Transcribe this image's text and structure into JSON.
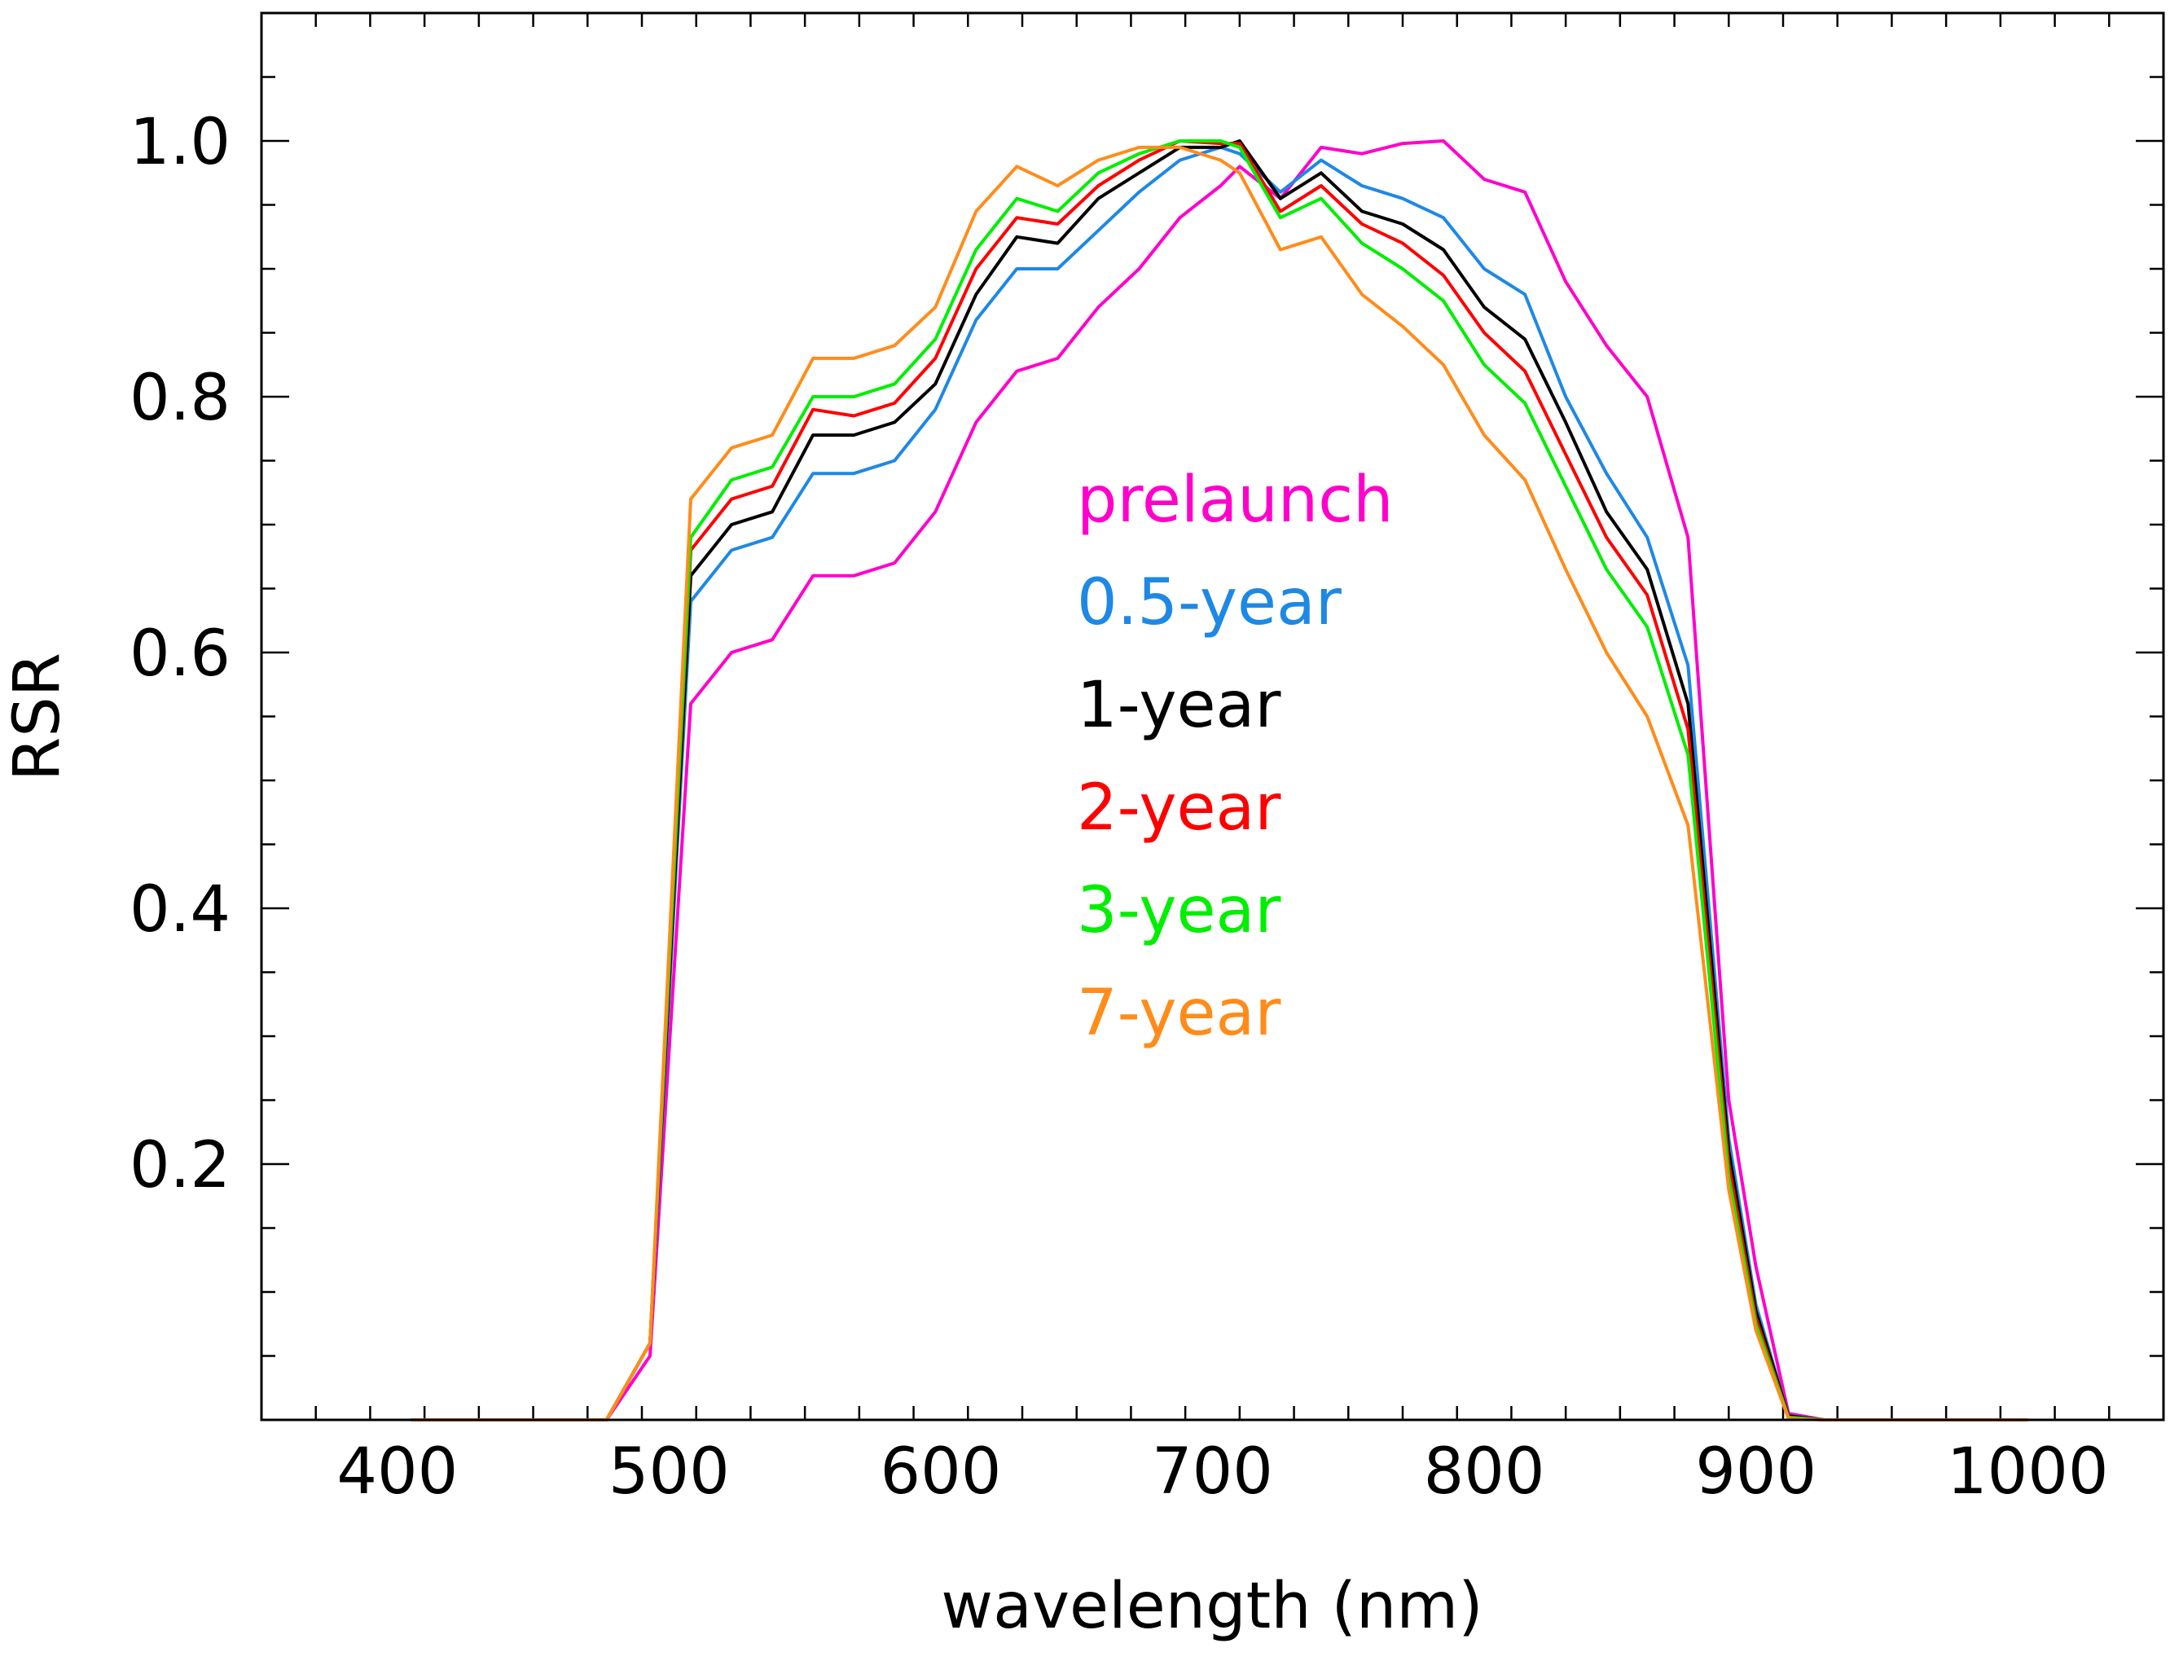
{
  "chart_data": {
    "type": "line",
    "title": "",
    "xlabel": "wavelength (nm)",
    "ylabel": "RSR",
    "xlim": [
      350,
      1050
    ],
    "ylim": [
      0,
      1.1
    ],
    "x_ticks": [
      400,
      500,
      600,
      700,
      800,
      900,
      1000
    ],
    "x_tick_labels": [
      "400",
      "500",
      "600",
      "700",
      "800",
      "900",
      "1000"
    ],
    "y_ticks": [
      0.2,
      0.4,
      0.6,
      0.8,
      1.0
    ],
    "y_tick_labels": [
      "0.2",
      "0.4",
      "0.6",
      "0.8",
      "1.0"
    ],
    "legend_placement": "center",
    "grid": false,
    "x": [
      405,
      420,
      435,
      450,
      465,
      477,
      493,
      508,
      523,
      538,
      553,
      568,
      583,
      598,
      613,
      628,
      643,
      658,
      673,
      688,
      703,
      710,
      725,
      740,
      755,
      770,
      785,
      800,
      815,
      830,
      845,
      860,
      875,
      890,
      900,
      912,
      925,
      940,
      955,
      970,
      985,
      1000
    ],
    "series": [
      {
        "name": "prelaunch",
        "color": "#ff00cc",
        "values": [
          0,
          0,
          0,
          0,
          0,
          0,
          0.05,
          0.56,
          0.6,
          0.61,
          0.66,
          0.66,
          0.67,
          0.71,
          0.78,
          0.82,
          0.83,
          0.87,
          0.9,
          0.94,
          0.965,
          0.98,
          0.955,
          0.995,
          0.99,
          0.998,
          1.0,
          0.97,
          0.96,
          0.89,
          0.84,
          0.8,
          0.69,
          0.25,
          0.12,
          0.005,
          0,
          0,
          0,
          0,
          0,
          0
        ]
      },
      {
        "name": "0.5-year",
        "color": "#1e88e5",
        "values": [
          0,
          0,
          0,
          0,
          0,
          0,
          0.06,
          0.64,
          0.68,
          0.69,
          0.74,
          0.74,
          0.75,
          0.79,
          0.86,
          0.9,
          0.9,
          0.93,
          0.96,
          0.985,
          0.995,
          0.99,
          0.96,
          0.985,
          0.965,
          0.955,
          0.94,
          0.9,
          0.88,
          0.8,
          0.74,
          0.69,
          0.59,
          0.22,
          0.09,
          0.003,
          0,
          0,
          0,
          0,
          0,
          0
        ]
      },
      {
        "name": "1-year",
        "color": "#000000",
        "values": [
          0,
          0,
          0,
          0,
          0,
          0,
          0.06,
          0.66,
          0.7,
          0.71,
          0.77,
          0.77,
          0.78,
          0.81,
          0.88,
          0.925,
          0.92,
          0.955,
          0.975,
          0.995,
          0.995,
          1.0,
          0.955,
          0.975,
          0.945,
          0.935,
          0.915,
          0.87,
          0.845,
          0.78,
          0.71,
          0.665,
          0.56,
          0.21,
          0.085,
          0.003,
          0,
          0,
          0,
          0,
          0,
          0
        ]
      },
      {
        "name": "2-year",
        "color": "#ff0000",
        "values": [
          0,
          0,
          0,
          0,
          0,
          0,
          0.06,
          0.68,
          0.72,
          0.73,
          0.79,
          0.785,
          0.795,
          0.83,
          0.9,
          0.94,
          0.935,
          0.965,
          0.985,
          1.0,
          0.998,
          0.998,
          0.945,
          0.965,
          0.935,
          0.92,
          0.895,
          0.85,
          0.82,
          0.755,
          0.69,
          0.645,
          0.54,
          0.2,
          0.08,
          0.002,
          0,
          0,
          0,
          0,
          0,
          0
        ]
      },
      {
        "name": "3-year",
        "color": "#00ee00",
        "values": [
          0,
          0,
          0,
          0,
          0,
          0,
          0.06,
          0.69,
          0.735,
          0.745,
          0.8,
          0.8,
          0.81,
          0.845,
          0.915,
          0.955,
          0.945,
          0.975,
          0.99,
          1.0,
          1.0,
          0.995,
          0.94,
          0.955,
          0.92,
          0.9,
          0.875,
          0.825,
          0.795,
          0.73,
          0.665,
          0.62,
          0.52,
          0.19,
          0.075,
          0.002,
          0,
          0,
          0,
          0,
          0,
          0
        ]
      },
      {
        "name": "7-year",
        "color": "#ff8c1a",
        "values": [
          0,
          0,
          0,
          0,
          0,
          0,
          0.06,
          0.72,
          0.76,
          0.77,
          0.83,
          0.83,
          0.84,
          0.87,
          0.945,
          0.98,
          0.965,
          0.985,
          0.995,
          0.995,
          0.985,
          0.975,
          0.915,
          0.925,
          0.88,
          0.855,
          0.825,
          0.77,
          0.735,
          0.665,
          0.6,
          0.55,
          0.465,
          0.18,
          0.07,
          0.001,
          0,
          0,
          0,
          0,
          0,
          0
        ]
      }
    ]
  }
}
